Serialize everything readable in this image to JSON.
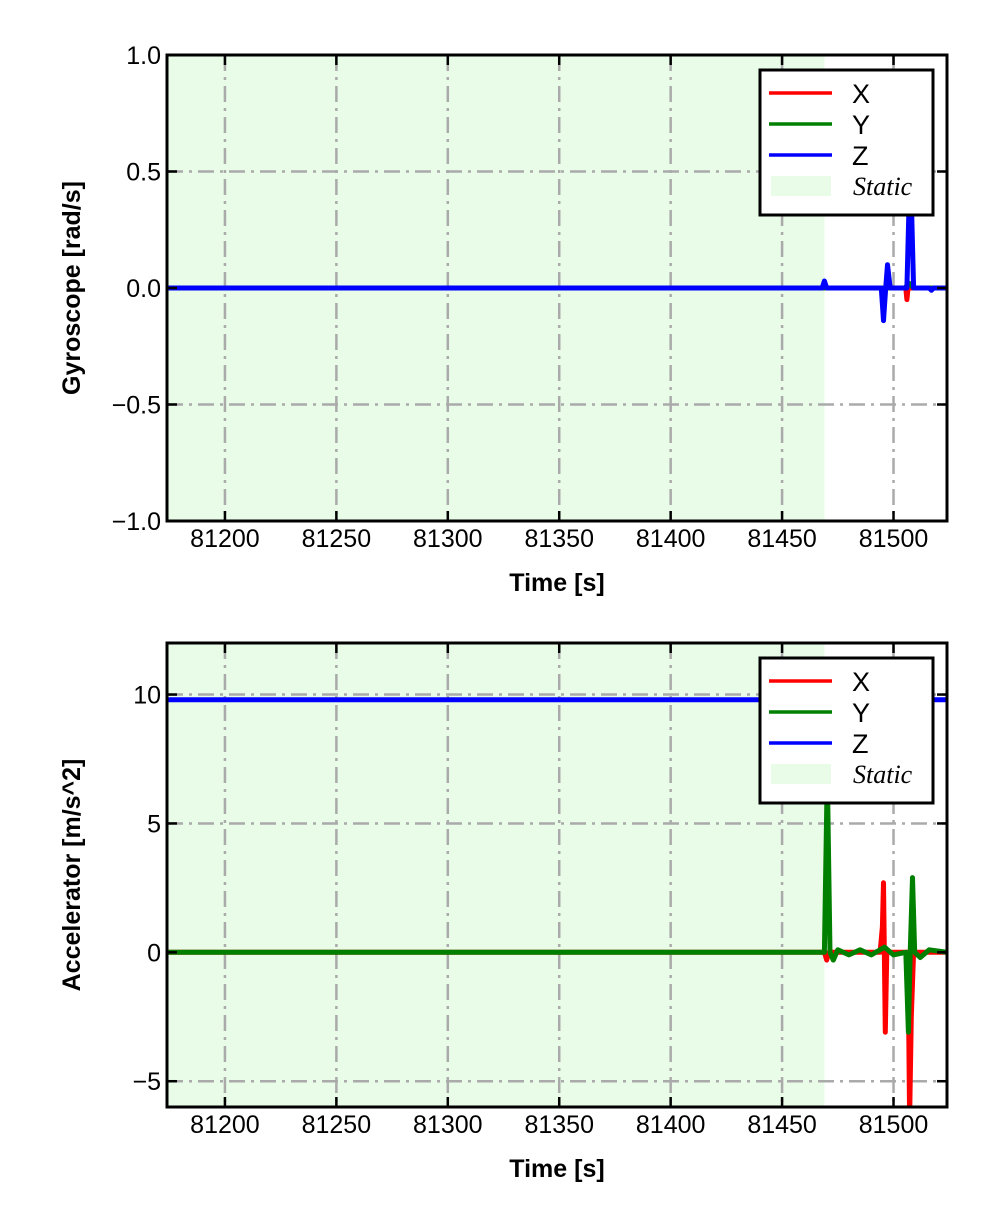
{
  "chart_data": [
    {
      "type": "line",
      "ylabel": "Gyroscope [rad/s]",
      "xlabel": "Time [s]",
      "xlim": [
        81174,
        81524
      ],
      "ylim": [
        -1.0,
        1.0
      ],
      "xticks": [
        81200,
        81250,
        81300,
        81350,
        81400,
        81450,
        81500
      ],
      "xtick_labels": [
        "81200",
        "81250",
        "81300",
        "81350",
        "81400",
        "81450",
        "81500"
      ],
      "yticks": [
        -1.0,
        -0.5,
        0.0,
        0.5,
        1.0
      ],
      "ytick_labels": [
        "−1.0",
        "−0.5",
        "0.0",
        "0.5",
        "1.0"
      ],
      "grid": true,
      "legend_placement": "top-right",
      "static_region": {
        "label": "Static",
        "x": [
          81174,
          81469
        ],
        "color": "#e8fce8"
      },
      "series": [
        {
          "name": "X",
          "color": "#ff0000",
          "x": [
            81174,
            81494,
            81505.5,
            81506,
            81506.5,
            81524
          ],
          "y": [
            0,
            0,
            0,
            -0.05,
            0,
            0
          ]
        },
        {
          "name": "Y",
          "color": "#008000",
          "x": [
            81174,
            81505,
            81507,
            81509,
            81524
          ],
          "y": [
            0,
            0,
            0.02,
            0,
            0
          ]
        },
        {
          "name": "Z",
          "color": "#0000ff",
          "x": [
            81174,
            81468,
            81469,
            81470,
            81494.5,
            81495.5,
            81496.5,
            81497.3,
            81498.5,
            81506,
            81507.2,
            81507.8,
            81509,
            81516,
            81517,
            81518,
            81524
          ],
          "y": [
            0,
            0,
            0.03,
            0,
            0,
            -0.14,
            0,
            0.1,
            0,
            0,
            0.45,
            0.45,
            0,
            0,
            -0.01,
            0,
            0
          ]
        }
      ]
    },
    {
      "type": "line",
      "ylabel": "Accelerator [m/s^2]",
      "xlabel": "Time [s]",
      "xlim": [
        81174,
        81524
      ],
      "ylim": [
        -6,
        12
      ],
      "xticks": [
        81200,
        81250,
        81300,
        81350,
        81400,
        81450,
        81500
      ],
      "xtick_labels": [
        "81200",
        "81250",
        "81300",
        "81350",
        "81400",
        "81450",
        "81500"
      ],
      "yticks": [
        -5,
        0,
        5,
        10
      ],
      "ytick_labels": [
        "−5",
        "0",
        "5",
        "10"
      ],
      "grid": true,
      "legend_placement": "top-right",
      "static_region": {
        "label": "Static",
        "x": [
          81174,
          81469
        ],
        "color": "#e8fce8"
      },
      "series": [
        {
          "name": "X",
          "color": "#ff0000",
          "x": [
            81174,
            81469,
            81470,
            81471,
            81494,
            81495,
            81495.5,
            81496.3,
            81497,
            81498,
            81506.5,
            81507.2,
            81508,
            81509,
            81524
          ],
          "y": [
            0,
            0,
            -0.3,
            0,
            0,
            1.0,
            2.7,
            -3.1,
            0,
            0,
            0,
            -6.5,
            -2.5,
            0,
            0
          ]
        },
        {
          "name": "Y",
          "color": "#008000",
          "x": [
            81174,
            81469,
            81470.3,
            81471.5,
            81473,
            81475,
            81480,
            81485,
            81490,
            81496,
            81500,
            81505.5,
            81506.7,
            81507.5,
            81508.5,
            81509.5,
            81512,
            81516,
            81524
          ],
          "y": [
            0,
            0,
            7.0,
            0,
            -0.3,
            0.1,
            -0.1,
            0.1,
            -0.1,
            0.2,
            -0.1,
            0,
            -3.1,
            0,
            2.9,
            0,
            -0.2,
            0.1,
            0
          ]
        },
        {
          "name": "Z",
          "color": "#0000ff",
          "x": [
            81174,
            81524
          ],
          "y": [
            9.8,
            9.8
          ]
        }
      ]
    }
  ]
}
